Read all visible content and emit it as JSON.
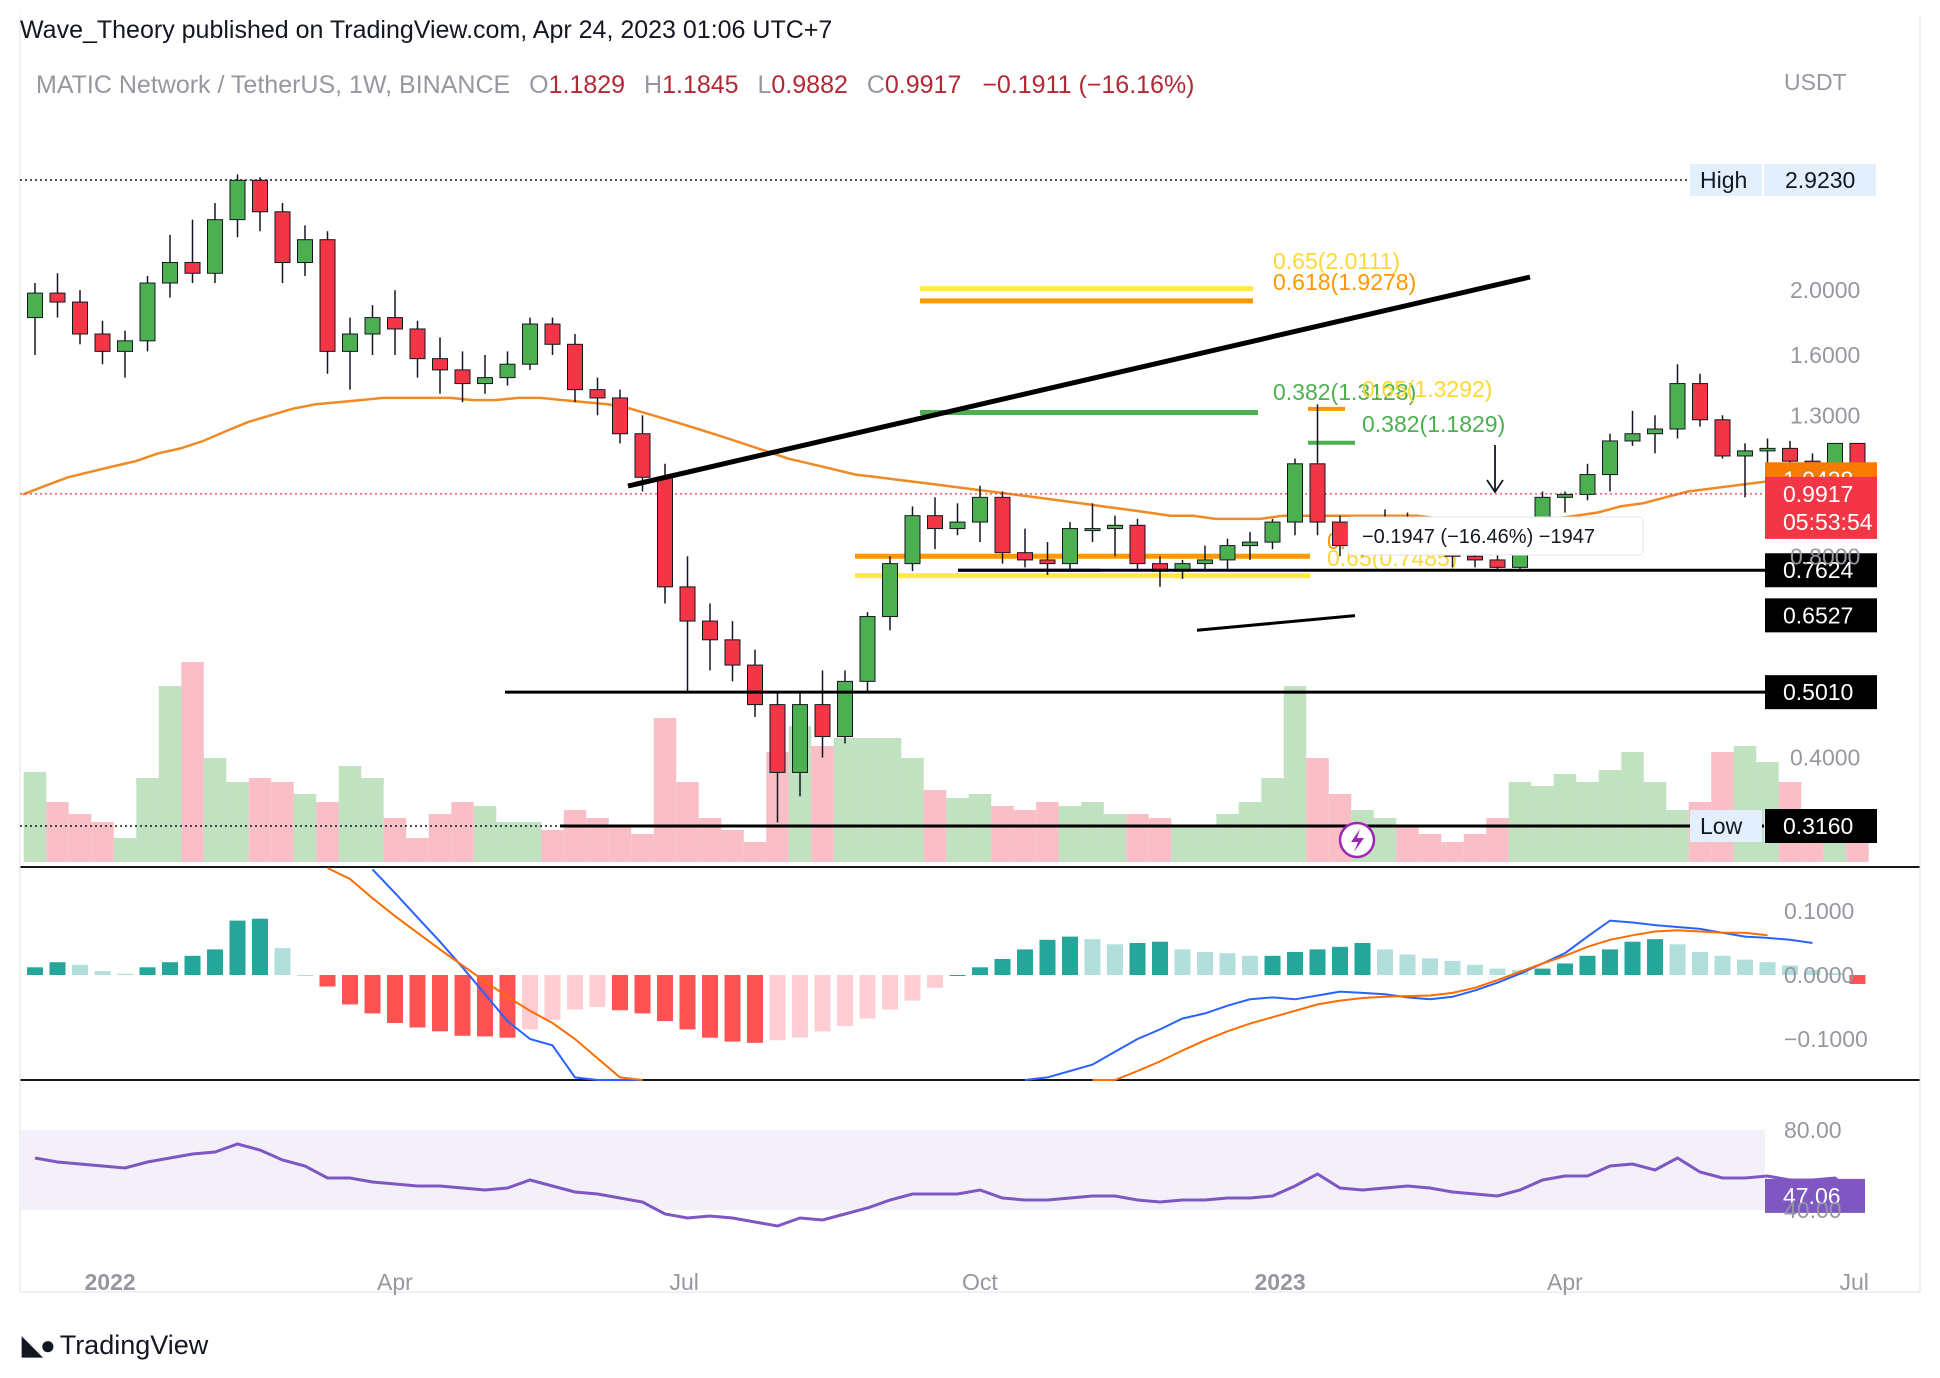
{
  "header": {
    "publisher": "Wave_Theory published on TradingView.com, Apr 24, 2023 01:06 UTC+7"
  },
  "symbol": {
    "name": "MATIC Network / TetherUS, 1W, BINANCE",
    "open_label": "O",
    "open": "1.1829",
    "high_label": "H",
    "high": "1.1845",
    "low_label": "L",
    "low": "0.9882",
    "close_label": "C",
    "close": "0.9917",
    "change": "−0.1911 (−16.16%)"
  },
  "footer": {
    "brand": "TradingView"
  },
  "colors": {
    "up": "#4caf50",
    "down": "#f23645",
    "ema": "#f08a24",
    "macd": "#2962ff",
    "signal": "#ff6d00",
    "rsi": "#7e57c2",
    "fib_orange": "#ff9800",
    "fib_yellow": "#ffeb3b",
    "fib_green": "#4caf50"
  },
  "chart_data": [
    {
      "type": "candlestick",
      "currency_label": "USDT",
      "y_scale": "log",
      "ylim": [
        0.3,
        2.4
      ],
      "price_ticks": [
        "2.0000",
        "1.6000",
        "1.3000",
        "0.8000",
        "0.4000"
      ],
      "time_labels": [
        "2022",
        "Apr",
        "Jul",
        "Oct",
        "2023",
        "Apr",
        "Jul"
      ],
      "time_label_weeks": [
        3,
        16,
        29,
        42,
        55,
        68,
        81
      ],
      "ohlc": [
        [
          1.82,
          2.05,
          1.6,
          1.98
        ],
        [
          1.98,
          2.12,
          1.82,
          1.92
        ],
        [
          1.92,
          2.0,
          1.66,
          1.72
        ],
        [
          1.72,
          1.8,
          1.55,
          1.62
        ],
        [
          1.62,
          1.74,
          1.48,
          1.68
        ],
        [
          1.68,
          2.1,
          1.62,
          2.05
        ],
        [
          2.05,
          2.42,
          1.95,
          2.2
        ],
        [
          2.2,
          2.55,
          2.05,
          2.12
        ],
        [
          2.12,
          2.7,
          2.05,
          2.55
        ],
        [
          2.55,
          2.98,
          2.4,
          2.92
        ],
        [
          2.92,
          2.95,
          2.45,
          2.62
        ],
        [
          2.62,
          2.7,
          2.05,
          2.2
        ],
        [
          2.2,
          2.5,
          2.1,
          2.38
        ],
        [
          2.38,
          2.45,
          1.5,
          1.62
        ],
        [
          1.62,
          1.82,
          1.42,
          1.72
        ],
        [
          1.72,
          1.9,
          1.6,
          1.82
        ],
        [
          1.82,
          2.0,
          1.6,
          1.75
        ],
        [
          1.75,
          1.8,
          1.48,
          1.58
        ],
        [
          1.58,
          1.7,
          1.4,
          1.52
        ],
        [
          1.52,
          1.62,
          1.36,
          1.45
        ],
        [
          1.45,
          1.6,
          1.4,
          1.48
        ],
        [
          1.48,
          1.62,
          1.44,
          1.55
        ],
        [
          1.55,
          1.82,
          1.52,
          1.78
        ],
        [
          1.78,
          1.82,
          1.6,
          1.66
        ],
        [
          1.66,
          1.72,
          1.36,
          1.42
        ],
        [
          1.42,
          1.48,
          1.3,
          1.38
        ],
        [
          1.38,
          1.42,
          1.18,
          1.22
        ],
        [
          1.22,
          1.3,
          1.0,
          1.05
        ],
        [
          1.05,
          1.1,
          0.68,
          0.72
        ],
        [
          0.72,
          0.8,
          0.5,
          0.64
        ],
        [
          0.64,
          0.68,
          0.54,
          0.6
        ],
        [
          0.6,
          0.64,
          0.52,
          0.55
        ],
        [
          0.55,
          0.58,
          0.46,
          0.48
        ],
        [
          0.48,
          0.5,
          0.32,
          0.38
        ],
        [
          0.38,
          0.5,
          0.35,
          0.48
        ],
        [
          0.48,
          0.54,
          0.4,
          0.43
        ],
        [
          0.43,
          0.54,
          0.42,
          0.52
        ],
        [
          0.52,
          0.66,
          0.5,
          0.65
        ],
        [
          0.65,
          0.8,
          0.62,
          0.78
        ],
        [
          0.78,
          0.95,
          0.76,
          0.92
        ],
        [
          0.92,
          0.98,
          0.82,
          0.88
        ],
        [
          0.88,
          0.96,
          0.86,
          0.9
        ],
        [
          0.9,
          1.02,
          0.84,
          0.98
        ],
        [
          0.98,
          1.0,
          0.78,
          0.81
        ],
        [
          0.81,
          0.88,
          0.77,
          0.79
        ],
        [
          0.79,
          0.84,
          0.75,
          0.78
        ],
        [
          0.78,
          0.9,
          0.76,
          0.88
        ],
        [
          0.88,
          0.96,
          0.84,
          0.88
        ],
        [
          0.88,
          0.92,
          0.8,
          0.89
        ],
        [
          0.89,
          0.91,
          0.76,
          0.78
        ],
        [
          0.78,
          0.8,
          0.72,
          0.76
        ],
        [
          0.76,
          0.79,
          0.74,
          0.78
        ],
        [
          0.78,
          0.83,
          0.76,
          0.79
        ],
        [
          0.79,
          0.85,
          0.76,
          0.83
        ],
        [
          0.83,
          0.87,
          0.79,
          0.84
        ],
        [
          0.84,
          0.91,
          0.82,
          0.9
        ],
        [
          0.9,
          1.12,
          0.86,
          1.1
        ],
        [
          1.1,
          1.35,
          0.86,
          0.9
        ],
        [
          0.9,
          0.92,
          0.8,
          0.83
        ],
        [
          0.83,
          0.9,
          0.8,
          0.86
        ],
        [
          0.86,
          0.94,
          0.84,
          0.91
        ],
        [
          0.91,
          0.93,
          0.86,
          0.89
        ],
        [
          0.89,
          0.91,
          0.82,
          0.84
        ],
        [
          0.84,
          0.87,
          0.77,
          0.8
        ],
        [
          0.8,
          0.82,
          0.77,
          0.79
        ],
        [
          0.79,
          0.82,
          0.76,
          0.77
        ],
        [
          0.77,
          0.86,
          0.76,
          0.84
        ],
        [
          0.84,
          1.0,
          0.82,
          0.98
        ],
        [
          0.98,
          1.0,
          0.93,
          0.99
        ],
        [
          0.99,
          1.1,
          0.97,
          1.06
        ],
        [
          1.06,
          1.22,
          1.0,
          1.19
        ],
        [
          1.19,
          1.32,
          1.17,
          1.22
        ],
        [
          1.22,
          1.3,
          1.14,
          1.24
        ],
        [
          1.24,
          1.55,
          1.2,
          1.45
        ],
        [
          1.45,
          1.5,
          1.25,
          1.28
        ],
        [
          1.28,
          1.3,
          1.12,
          1.13
        ],
        [
          1.13,
          1.18,
          0.98,
          1.15
        ],
        [
          1.15,
          1.2,
          1.08,
          1.16
        ],
        [
          1.16,
          1.19,
          1.1,
          1.11
        ],
        [
          1.11,
          1.14,
          1.04,
          1.1
        ],
        [
          1.1,
          1.18,
          1.06,
          1.18
        ],
        [
          1.18,
          1.18,
          0.99,
          0.99
        ]
      ],
      "ema50": [
        0.99,
        1.02,
        1.05,
        1.07,
        1.09,
        1.11,
        1.14,
        1.16,
        1.19,
        1.23,
        1.27,
        1.3,
        1.33,
        1.35,
        1.36,
        1.37,
        1.38,
        1.38,
        1.38,
        1.38,
        1.37,
        1.37,
        1.38,
        1.38,
        1.37,
        1.36,
        1.35,
        1.33,
        1.3,
        1.27,
        1.24,
        1.21,
        1.18,
        1.15,
        1.12,
        1.1,
        1.08,
        1.06,
        1.05,
        1.04,
        1.03,
        1.02,
        1.01,
        1.0,
        0.99,
        0.98,
        0.97,
        0.96,
        0.95,
        0.94,
        0.93,
        0.92,
        0.92,
        0.91,
        0.91,
        0.91,
        0.92,
        0.92,
        0.92,
        0.92,
        0.92,
        0.92,
        0.92,
        0.91,
        0.9,
        0.9,
        0.9,
        0.9,
        0.91,
        0.92,
        0.93,
        0.95,
        0.96,
        0.98,
        1.0,
        1.01,
        1.02,
        1.03,
        1.04,
        1.04,
        1.04,
        1.04
      ],
      "volume": [
        0.45,
        0.3,
        0.24,
        0.2,
        0.12,
        0.42,
        0.88,
        1.0,
        0.52,
        0.4,
        0.42,
        0.4,
        0.34,
        0.3,
        0.48,
        0.42,
        0.22,
        0.12,
        0.24,
        0.3,
        0.28,
        0.2,
        0.2,
        0.16,
        0.26,
        0.22,
        0.18,
        0.14,
        0.72,
        0.4,
        0.22,
        0.16,
        0.1,
        0.55,
        0.68,
        0.58,
        0.62,
        0.62,
        0.62,
        0.52,
        0.36,
        0.32,
        0.34,
        0.28,
        0.26,
        0.3,
        0.28,
        0.3,
        0.24,
        0.24,
        0.22,
        0.18,
        0.18,
        0.24,
        0.3,
        0.42,
        0.88,
        0.52,
        0.34,
        0.26,
        0.22,
        0.18,
        0.14,
        0.1,
        0.14,
        0.22,
        0.4,
        0.38,
        0.44,
        0.4,
        0.46,
        0.55,
        0.4,
        0.26,
        0.3,
        0.55,
        0.58,
        0.5,
        0.4,
        0.24,
        0.2,
        0.18
      ],
      "levels": [
        {
          "label": "High",
          "value": "2.9230",
          "price": 2.923,
          "style": "dotted"
        },
        {
          "label": "Low",
          "value": "0.3160",
          "price": 0.316,
          "style": "dotted"
        }
      ],
      "support_lines": [
        {
          "value": "0.7624",
          "price": 0.7624
        },
        {
          "value": "0.5010",
          "price": 0.501
        },
        {
          "value": "0.3160",
          "price": 0.316
        }
      ],
      "extra_price_tags": [
        {
          "value": "0.6527",
          "price": 0.6527,
          "kind": "black"
        },
        {
          "value": "1.0428",
          "price": 1.0428,
          "kind": "ema"
        },
        {
          "value": "0.9917",
          "price": 0.9917,
          "kind": "last",
          "countdown": "05:53:54"
        }
      ],
      "fib_labels": [
        {
          "text": "0.65(2.0111)",
          "price": 2.0111,
          "color": "#fdd835"
        },
        {
          "text": "0.618(1.9278)",
          "price": 1.9278,
          "color": "#ff9800"
        },
        {
          "text": "0.382(1.3128)",
          "price": 1.3128,
          "color": "#4caf50"
        },
        {
          "text": "0.65(1.3292)",
          "price": 1.3292,
          "color": "#fdd835"
        },
        {
          "text": "0.382(1.1829)",
          "price": 1.1829,
          "color": "#4caf50"
        },
        {
          "text": "0.65(0.7485)",
          "price": 0.7485,
          "color": "#fdd835"
        },
        {
          "text": "0.6",
          "price": 0.8,
          "color": "#ff9800"
        }
      ],
      "measurement": "−0.1947 (−16.46%) −1947"
    },
    {
      "type": "macd",
      "y_ticks": [
        "0.1000",
        "0.0000",
        "−0.1000"
      ],
      "histogram": [
        0.012,
        0.02,
        0.016,
        0.006,
        0.002,
        0.012,
        0.02,
        0.03,
        0.04,
        0.085,
        0.088,
        0.042,
        0.0,
        -0.018,
        -0.046,
        -0.06,
        -0.075,
        -0.082,
        -0.088,
        -0.095,
        -0.096,
        -0.098,
        -0.085,
        -0.07,
        -0.054,
        -0.05,
        -0.055,
        -0.06,
        -0.072,
        -0.085,
        -0.098,
        -0.104,
        -0.106,
        -0.102,
        -0.098,
        -0.088,
        -0.08,
        -0.068,
        -0.054,
        -0.04,
        -0.02,
        0.0,
        0.012,
        0.025,
        0.04,
        0.055,
        0.06,
        0.056,
        0.048,
        0.05,
        0.052,
        0.04,
        0.036,
        0.034,
        0.03,
        0.03,
        0.036,
        0.04,
        0.044,
        0.05,
        0.04,
        0.032,
        0.026,
        0.022,
        0.016,
        0.01,
        0.008,
        0.01,
        0.018,
        0.03,
        0.04,
        0.052,
        0.056,
        0.048,
        0.036,
        0.03,
        0.024,
        0.02,
        0.015,
        0.008,
        0.003,
        -0.014
      ],
      "macd_line": [
        null,
        null,
        null,
        null,
        null,
        null,
        null,
        null,
        null,
        null,
        null,
        null,
        null,
        null,
        null,
        0.165,
        0.128,
        0.09,
        0.052,
        0.012,
        -0.03,
        -0.072,
        -0.1,
        -0.11,
        -0.16,
        -0.21,
        -0.27,
        -0.33,
        null,
        null,
        null,
        null,
        null,
        null,
        null,
        null,
        null,
        null,
        null,
        null,
        null,
        null,
        null,
        null,
        -0.175,
        -0.16,
        -0.15,
        -0.14,
        -0.12,
        -0.1,
        -0.085,
        -0.068,
        -0.06,
        -0.048,
        -0.038,
        -0.035,
        -0.038,
        -0.032,
        -0.026,
        -0.028,
        -0.03,
        -0.035,
        -0.038,
        -0.034,
        -0.024,
        -0.012,
        0.002,
        0.018,
        0.034,
        0.06,
        0.085,
        0.082,
        0.078,
        0.075,
        0.072,
        0.066,
        0.06,
        0.058,
        0.055,
        0.05
      ],
      "signal_line": [
        null,
        null,
        null,
        null,
        null,
        null,
        null,
        null,
        null,
        null,
        null,
        null,
        null,
        0.18,
        0.15,
        0.12,
        0.092,
        0.066,
        0.04,
        0.015,
        -0.01,
        -0.034,
        -0.056,
        -0.075,
        -0.1,
        -0.13,
        -0.16,
        -0.195,
        null,
        null,
        null,
        null,
        null,
        null,
        null,
        null,
        null,
        null,
        null,
        null,
        null,
        null,
        null,
        null,
        null,
        null,
        null,
        -0.18,
        -0.165,
        -0.15,
        -0.135,
        -0.118,
        -0.102,
        -0.088,
        -0.076,
        -0.066,
        -0.056,
        -0.046,
        -0.04,
        -0.036,
        -0.034,
        -0.033,
        -0.032,
        -0.028,
        -0.02,
        -0.008,
        0.005,
        0.018,
        0.03,
        0.044,
        0.055,
        0.062,
        0.068,
        0.07,
        0.068,
        0.066,
        0.066,
        0.062
      ]
    },
    {
      "type": "rsi",
      "y_ticks": [
        "80.00",
        "40.00"
      ],
      "band": [
        40,
        80
      ],
      "last_value": "47.06",
      "values": [
        66,
        64,
        63,
        62,
        61,
        64,
        66,
        68,
        69,
        73,
        70,
        65,
        62,
        56,
        56,
        54,
        53,
        52,
        52,
        51,
        50,
        51,
        55,
        52,
        49,
        48,
        46,
        44,
        38,
        36,
        37,
        36,
        34,
        32,
        36,
        35,
        38,
        41,
        45,
        48,
        48,
        48,
        50,
        46,
        45,
        45,
        46,
        47,
        47,
        45,
        44,
        45,
        45,
        46,
        46,
        47,
        52,
        58,
        51,
        50,
        51,
        52,
        51,
        49,
        48,
        47,
        50,
        55,
        57,
        57,
        62,
        63,
        60,
        66,
        59,
        56,
        56,
        57,
        55,
        55,
        56,
        47
      ]
    }
  ]
}
